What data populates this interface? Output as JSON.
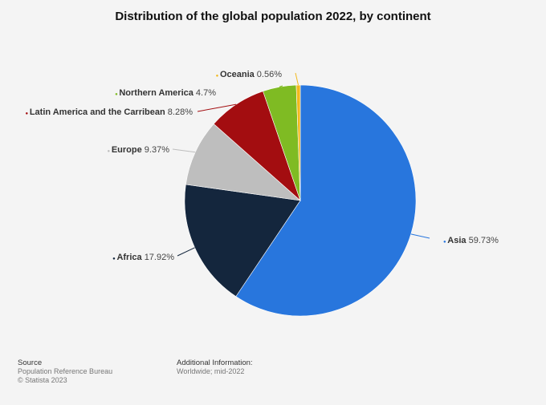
{
  "title": "Distribution of the global population 2022, by continent",
  "chart_data": {
    "type": "pie",
    "title": "Distribution of the global population 2022, by continent",
    "unit": "%",
    "slices": [
      {
        "name": "Asia",
        "value": 59.73,
        "label": "59.73%",
        "color": "#2876dd"
      },
      {
        "name": "Africa",
        "value": 17.92,
        "label": "17.92%",
        "color": "#14263d"
      },
      {
        "name": "Europe",
        "value": 9.37,
        "label": "9.37%",
        "color": "#bebebe"
      },
      {
        "name": "Latin America and the Carribean",
        "value": 8.28,
        "label": "8.28%",
        "color": "#a30d10"
      },
      {
        "name": "Northern America",
        "value": 4.7,
        "label": "4.7%",
        "color": "#7fbb23"
      },
      {
        "name": "Oceania",
        "value": 0.56,
        "label": "0.56%",
        "color": "#f2b91d"
      }
    ]
  },
  "footer": {
    "source_heading": "Source",
    "source_lines": [
      "Population Reference Bureau",
      "© Statista 2023"
    ],
    "info_heading": "Additional Information:",
    "info_lines": [
      "Worldwide; mid-2022"
    ]
  }
}
